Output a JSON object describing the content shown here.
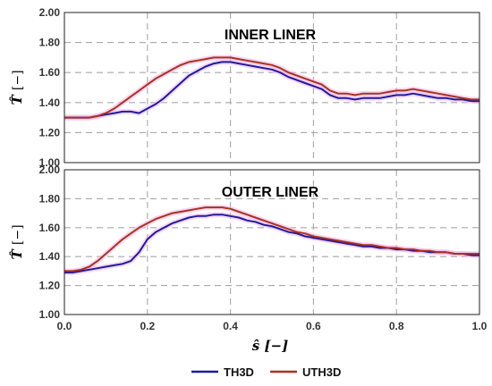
{
  "chart_data": [
    {
      "type": "line",
      "title": "INNER LINER",
      "xlabel": "",
      "ylabel_symbol": "T̂",
      "ylabel_unit": "[−]",
      "xlim": [
        0,
        1
      ],
      "ylim": [
        1.0,
        2.0
      ],
      "grid": true,
      "xticks": [
        "0.0",
        "0.2",
        "0.4",
        "0.6",
        "0.8",
        "1.0"
      ],
      "yticks": [
        "1.00",
        "1.20",
        "1.40",
        "1.60",
        "1.80",
        "2.00"
      ],
      "series": [
        {
          "name": "TH3D",
          "x": [
            0.0,
            0.02,
            0.04,
            0.06,
            0.08,
            0.1,
            0.12,
            0.14,
            0.16,
            0.18,
            0.2,
            0.22,
            0.24,
            0.26,
            0.28,
            0.3,
            0.32,
            0.34,
            0.36,
            0.38,
            0.4,
            0.42,
            0.44,
            0.46,
            0.48,
            0.5,
            0.52,
            0.54,
            0.56,
            0.58,
            0.6,
            0.62,
            0.64,
            0.66,
            0.68,
            0.7,
            0.72,
            0.74,
            0.76,
            0.78,
            0.8,
            0.82,
            0.84,
            0.86,
            0.88,
            0.9,
            0.92,
            0.94,
            0.96,
            0.98,
            1.0
          ],
          "values": [
            1.3,
            1.3,
            1.3,
            1.3,
            1.31,
            1.32,
            1.33,
            1.34,
            1.34,
            1.33,
            1.36,
            1.39,
            1.43,
            1.48,
            1.53,
            1.58,
            1.61,
            1.64,
            1.66,
            1.67,
            1.67,
            1.66,
            1.65,
            1.64,
            1.63,
            1.62,
            1.6,
            1.57,
            1.55,
            1.53,
            1.51,
            1.49,
            1.45,
            1.43,
            1.43,
            1.42,
            1.43,
            1.43,
            1.43,
            1.44,
            1.45,
            1.45,
            1.46,
            1.45,
            1.44,
            1.43,
            1.43,
            1.42,
            1.42,
            1.41,
            1.41
          ]
        },
        {
          "name": "UTH3D",
          "x": [
            0.0,
            0.02,
            0.04,
            0.06,
            0.08,
            0.1,
            0.12,
            0.14,
            0.16,
            0.18,
            0.2,
            0.22,
            0.24,
            0.26,
            0.28,
            0.3,
            0.32,
            0.34,
            0.36,
            0.38,
            0.4,
            0.42,
            0.44,
            0.46,
            0.48,
            0.5,
            0.52,
            0.54,
            0.56,
            0.58,
            0.6,
            0.62,
            0.64,
            0.66,
            0.68,
            0.7,
            0.72,
            0.74,
            0.76,
            0.78,
            0.8,
            0.82,
            0.84,
            0.86,
            0.88,
            0.9,
            0.92,
            0.94,
            0.96,
            0.98,
            1.0
          ],
          "values": [
            1.3,
            1.3,
            1.3,
            1.3,
            1.31,
            1.33,
            1.36,
            1.4,
            1.44,
            1.48,
            1.52,
            1.56,
            1.59,
            1.62,
            1.65,
            1.67,
            1.68,
            1.69,
            1.7,
            1.7,
            1.7,
            1.69,
            1.68,
            1.67,
            1.66,
            1.65,
            1.63,
            1.6,
            1.58,
            1.56,
            1.54,
            1.52,
            1.48,
            1.46,
            1.46,
            1.45,
            1.46,
            1.46,
            1.46,
            1.47,
            1.48,
            1.48,
            1.49,
            1.48,
            1.47,
            1.46,
            1.45,
            1.44,
            1.43,
            1.42,
            1.42
          ]
        }
      ]
    },
    {
      "type": "line",
      "title": "OUTER LINER",
      "xlabel": "ŝ [−]",
      "ylabel_symbol": "T̂",
      "ylabel_unit": "[−]",
      "xlim": [
        0,
        1
      ],
      "ylim": [
        1.0,
        2.0
      ],
      "grid": true,
      "xticks": [
        "0.0",
        "0.2",
        "0.4",
        "0.6",
        "0.8",
        "1.0"
      ],
      "yticks": [
        "1.00",
        "1.20",
        "1.40",
        "1.60",
        "1.80",
        "2.00"
      ],
      "series": [
        {
          "name": "TH3D",
          "x": [
            0.0,
            0.02,
            0.04,
            0.06,
            0.08,
            0.1,
            0.12,
            0.14,
            0.16,
            0.18,
            0.2,
            0.22,
            0.24,
            0.26,
            0.28,
            0.3,
            0.32,
            0.34,
            0.36,
            0.38,
            0.4,
            0.42,
            0.44,
            0.46,
            0.48,
            0.5,
            0.52,
            0.54,
            0.56,
            0.58,
            0.6,
            0.62,
            0.64,
            0.66,
            0.68,
            0.7,
            0.72,
            0.74,
            0.76,
            0.78,
            0.8,
            0.82,
            0.84,
            0.86,
            0.88,
            0.9,
            0.92,
            0.94,
            0.96,
            0.98,
            1.0
          ],
          "values": [
            1.29,
            1.29,
            1.3,
            1.31,
            1.32,
            1.33,
            1.34,
            1.35,
            1.37,
            1.43,
            1.52,
            1.57,
            1.6,
            1.63,
            1.65,
            1.67,
            1.68,
            1.68,
            1.69,
            1.69,
            1.68,
            1.67,
            1.65,
            1.64,
            1.62,
            1.61,
            1.59,
            1.57,
            1.56,
            1.54,
            1.53,
            1.52,
            1.51,
            1.5,
            1.49,
            1.48,
            1.47,
            1.47,
            1.46,
            1.46,
            1.45,
            1.45,
            1.44,
            1.44,
            1.43,
            1.43,
            1.43,
            1.42,
            1.42,
            1.41,
            1.41
          ]
        },
        {
          "name": "UTH3D",
          "x": [
            0.0,
            0.02,
            0.04,
            0.06,
            0.08,
            0.1,
            0.12,
            0.14,
            0.16,
            0.18,
            0.2,
            0.22,
            0.24,
            0.26,
            0.28,
            0.3,
            0.32,
            0.34,
            0.36,
            0.38,
            0.4,
            0.42,
            0.44,
            0.46,
            0.48,
            0.5,
            0.52,
            0.54,
            0.56,
            0.58,
            0.6,
            0.62,
            0.64,
            0.66,
            0.68,
            0.7,
            0.72,
            0.74,
            0.76,
            0.78,
            0.8,
            0.82,
            0.84,
            0.86,
            0.88,
            0.9,
            0.92,
            0.94,
            0.96,
            0.98,
            1.0
          ],
          "values": [
            1.3,
            1.3,
            1.31,
            1.33,
            1.37,
            1.42,
            1.47,
            1.52,
            1.56,
            1.6,
            1.63,
            1.66,
            1.68,
            1.7,
            1.71,
            1.72,
            1.73,
            1.74,
            1.74,
            1.74,
            1.73,
            1.71,
            1.69,
            1.67,
            1.65,
            1.63,
            1.61,
            1.59,
            1.57,
            1.56,
            1.54,
            1.53,
            1.52,
            1.51,
            1.5,
            1.49,
            1.48,
            1.48,
            1.47,
            1.46,
            1.46,
            1.45,
            1.45,
            1.44,
            1.44,
            1.43,
            1.43,
            1.42,
            1.42,
            1.42,
            1.42
          ]
        }
      ]
    }
  ],
  "legend": {
    "placement": "bottom",
    "items": [
      {
        "name": "TH3D",
        "color": "#1c1c9e"
      },
      {
        "name": "UTH3D",
        "color": "#a8321f"
      }
    ]
  },
  "colors": {
    "TH3D": "#1c1c9e",
    "UTH3D": "#a8321f",
    "glow": "#f4b6ea"
  }
}
